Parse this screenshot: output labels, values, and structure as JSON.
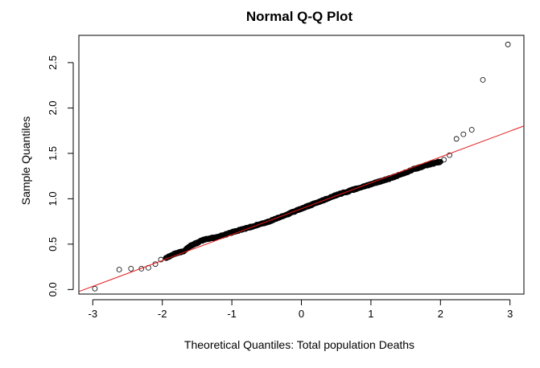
{
  "chart_data": {
    "type": "scatter",
    "title": "Normal Q-Q Plot",
    "xlabel": "Theoretical Quantiles: Total population Deaths",
    "ylabel": "Sample Quantiles",
    "xlim": [
      -3.2,
      3.2
    ],
    "ylim": [
      -0.05,
      2.8
    ],
    "x_ticks": [
      "-3",
      "-2",
      "-1",
      "0",
      "1",
      "2",
      "3"
    ],
    "y_ticks": [
      "0.0",
      "0.5",
      "1.0",
      "1.5",
      "2.0",
      "2.5"
    ],
    "grid": false,
    "point_color": "#000000",
    "line_color": "#e41a1c",
    "reference_line": {
      "intercept": 0.89,
      "slope": 0.285
    },
    "tail_points": [
      {
        "x": -2.97,
        "y": 0.01
      },
      {
        "x": -2.62,
        "y": 0.22
      },
      {
        "x": -2.45,
        "y": 0.23
      },
      {
        "x": -2.3,
        "y": 0.23
      },
      {
        "x": -2.2,
        "y": 0.24
      },
      {
        "x": -2.1,
        "y": 0.28
      },
      {
        "x": -2.02,
        "y": 0.33
      },
      {
        "x": 2.05,
        "y": 1.43
      },
      {
        "x": 2.13,
        "y": 1.48
      },
      {
        "x": 2.23,
        "y": 1.66
      },
      {
        "x": 2.33,
        "y": 1.71
      },
      {
        "x": 2.45,
        "y": 1.76
      },
      {
        "x": 2.61,
        "y": 2.31
      },
      {
        "x": 2.97,
        "y": 2.7
      }
    ],
    "body_curve": [
      {
        "x": -1.95,
        "y": 0.35
      },
      {
        "x": -1.8,
        "y": 0.4
      },
      {
        "x": -1.7,
        "y": 0.42
      },
      {
        "x": -1.6,
        "y": 0.48
      },
      {
        "x": -1.4,
        "y": 0.55
      },
      {
        "x": -1.2,
        "y": 0.58
      },
      {
        "x": -1.0,
        "y": 0.63
      },
      {
        "x": -0.5,
        "y": 0.74
      },
      {
        "x": 0.0,
        "y": 0.89
      },
      {
        "x": 0.5,
        "y": 1.04
      },
      {
        "x": 1.0,
        "y": 1.16
      },
      {
        "x": 1.3,
        "y": 1.23
      },
      {
        "x": 1.6,
        "y": 1.32
      },
      {
        "x": 1.8,
        "y": 1.37
      },
      {
        "x": 2.0,
        "y": 1.41
      }
    ],
    "body_point_count": 600
  }
}
